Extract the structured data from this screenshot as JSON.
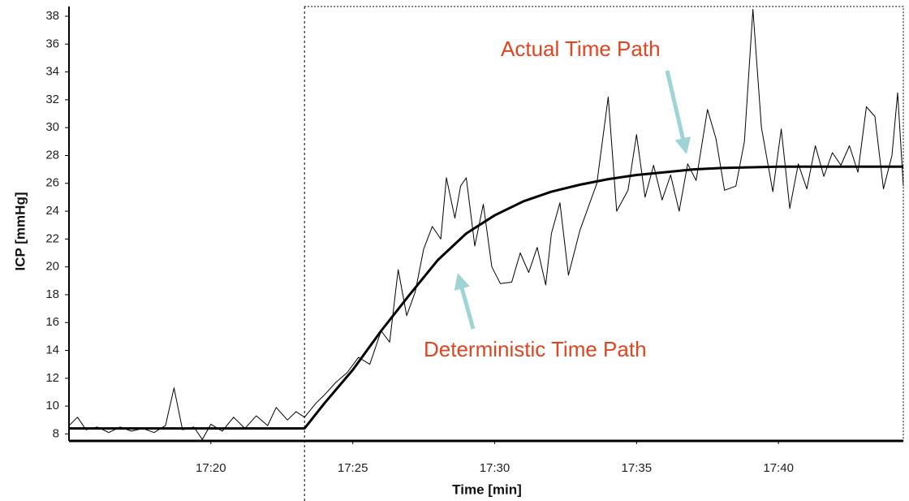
{
  "chart_data": {
    "type": "line",
    "xlabel": "Time [min]",
    "ylabel": "ICP [mmHg]",
    "xlim": [
      1035,
      1064.4
    ],
    "ylim": [
      7.5,
      38.7
    ],
    "xticks": [
      {
        "value": 1040,
        "label": "17:20"
      },
      {
        "value": 1045,
        "label": "17:25"
      },
      {
        "value": 1050,
        "label": "17:30"
      },
      {
        "value": 1055,
        "label": "17:35"
      },
      {
        "value": 1060,
        "label": "17:40"
      }
    ],
    "yticks": [
      8,
      10,
      12,
      14,
      16,
      18,
      20,
      22,
      24,
      26,
      28,
      30,
      32,
      34,
      36,
      38
    ],
    "grid": false,
    "vline": 1043.3,
    "series": [
      {
        "name": "Actual Time Path",
        "color": "#000000",
        "width": 1,
        "x": [
          1035.0,
          1035.3,
          1035.6,
          1036.0,
          1036.4,
          1036.8,
          1037.2,
          1037.6,
          1038.0,
          1038.4,
          1038.7,
          1039.0,
          1039.4,
          1039.7,
          1040.0,
          1040.4,
          1040.8,
          1041.2,
          1041.6,
          1042.0,
          1042.3,
          1042.7,
          1043.0,
          1043.3,
          1043.7,
          1044.0,
          1044.4,
          1044.8,
          1045.2,
          1045.6,
          1046.0,
          1046.3,
          1046.6,
          1046.9,
          1047.2,
          1047.5,
          1047.8,
          1048.1,
          1048.3,
          1048.6,
          1048.8,
          1049.0,
          1049.3,
          1049.6,
          1049.9,
          1050.2,
          1050.6,
          1050.9,
          1051.2,
          1051.5,
          1051.8,
          1052.0,
          1052.3,
          1052.6,
          1053.0,
          1053.3,
          1053.6,
          1054.0,
          1054.3,
          1054.7,
          1055.0,
          1055.3,
          1055.6,
          1055.9,
          1056.2,
          1056.5,
          1056.8,
          1057.1,
          1057.5,
          1057.8,
          1058.1,
          1058.5,
          1058.8,
          1059.1,
          1059.4,
          1059.8,
          1060.1,
          1060.4,
          1060.7,
          1061.0,
          1061.3,
          1061.6,
          1061.9,
          1062.2,
          1062.5,
          1062.8,
          1063.1,
          1063.4,
          1063.7,
          1064.0,
          1064.2,
          1064.4
        ],
        "values": [
          8.6,
          9.2,
          8.3,
          8.5,
          8.1,
          8.5,
          8.2,
          8.4,
          8.1,
          8.6,
          11.3,
          8.3,
          8.5,
          7.6,
          8.7,
          8.2,
          9.2,
          8.4,
          9.3,
          8.6,
          9.9,
          9.0,
          9.6,
          9.2,
          10.2,
          10.8,
          11.7,
          12.4,
          13.5,
          13.0,
          15.4,
          14.6,
          19.8,
          16.5,
          18.2,
          21.3,
          22.9,
          22.0,
          26.4,
          23.5,
          25.8,
          26.4,
          21.5,
          24.5,
          20.0,
          18.8,
          18.9,
          21.0,
          19.6,
          21.4,
          18.7,
          22.4,
          24.6,
          19.4,
          22.6,
          24.3,
          26.0,
          32.2,
          24.0,
          25.5,
          29.5,
          25.0,
          27.3,
          24.8,
          26.6,
          24.0,
          27.4,
          26.2,
          31.3,
          29.2,
          25.5,
          25.8,
          29.0,
          38.5,
          30.0,
          25.4,
          29.9,
          24.2,
          27.4,
          25.6,
          28.7,
          26.5,
          28.2,
          27.3,
          28.7,
          26.8,
          31.5,
          30.8,
          25.6,
          28.0,
          32.5,
          25.8
        ]
      },
      {
        "name": "Deterministic Time Path",
        "color": "#000000",
        "width": 3,
        "x": [
          1035.0,
          1043.3,
          1044.0,
          1045.0,
          1046.0,
          1047.0,
          1048.0,
          1049.0,
          1050.0,
          1051.0,
          1052.0,
          1053.0,
          1054.0,
          1055.0,
          1056.0,
          1057.0,
          1058.0,
          1060.0,
          1062.0,
          1064.4
        ],
        "values": [
          8.4,
          8.4,
          10.2,
          12.6,
          15.4,
          18.0,
          20.5,
          22.4,
          23.7,
          24.7,
          25.4,
          25.9,
          26.3,
          26.6,
          26.8,
          27.0,
          27.1,
          27.2,
          27.2,
          27.2
        ]
      }
    ]
  }
}
